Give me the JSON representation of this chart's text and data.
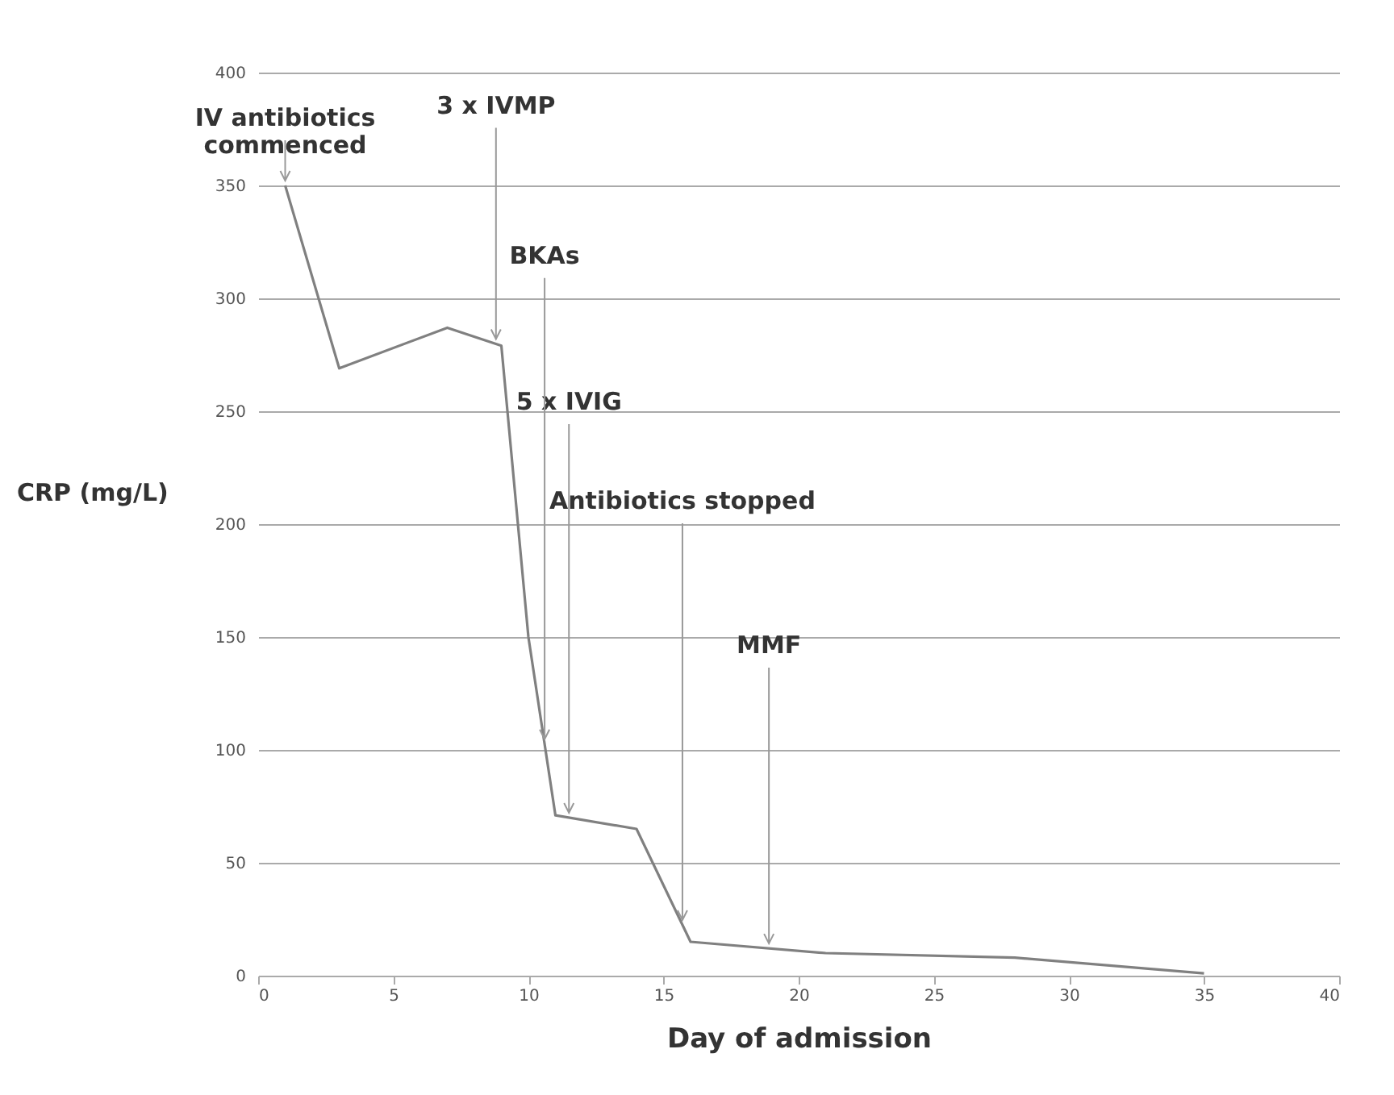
{
  "chart_data": {
    "type": "line",
    "xlabel": "Day of admission",
    "ylabel": "CRP\n(mg/L)",
    "x": [
      1,
      3,
      7,
      9,
      10,
      11,
      14,
      16,
      21,
      28,
      35
    ],
    "series": [
      {
        "color": "#808080",
        "values": [
          350,
          269,
          287,
          279,
          150,
          71,
          65,
          15,
          10,
          8,
          1
        ]
      }
    ],
    "xlim": [
      0,
      40
    ],
    "xticks": [
      0,
      5,
      10,
      15,
      20,
      25,
      30,
      35,
      40
    ],
    "ylim": [
      0,
      400
    ],
    "yticks": [
      0,
      50,
      100,
      150,
      200,
      250,
      300,
      350,
      400
    ],
    "grid": "y",
    "legend": false,
    "marker": "none",
    "line_style": "solid",
    "annotations": [
      {
        "text": "IV antibiotics\ncommenced",
        "x": 1,
        "y": 350
      },
      {
        "text": "3 x  IVMP",
        "x": 8.8,
        "y": 279.8
      },
      {
        "text": "BKAs",
        "x": 10.6,
        "y": 102.6
      },
      {
        "text": "5 x IVIG",
        "x": 11.5,
        "y": 70
      },
      {
        "text": "Antibiotics stopped",
        "x": 15.7,
        "y": 22.5
      },
      {
        "text": "MMF",
        "x": 18.9,
        "y": 12.1
      }
    ]
  }
}
